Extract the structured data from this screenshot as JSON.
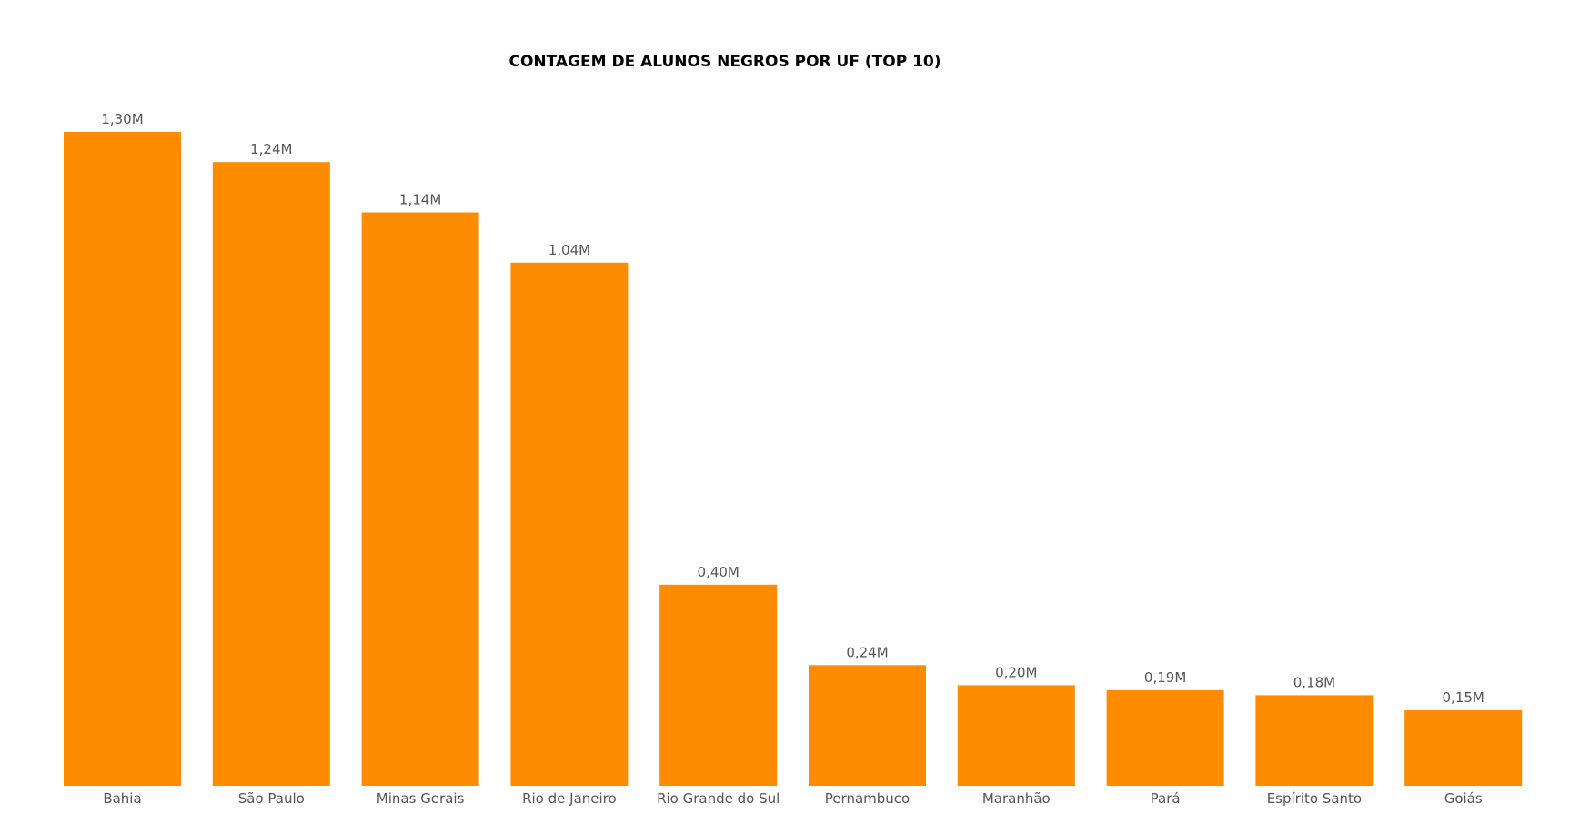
{
  "chart_data": {
    "type": "bar",
    "title": "CONTAGEM DE ALUNOS NEGROS POR UF (TOP 10)",
    "categories": [
      "Bahia",
      "São Paulo",
      "Minas Gerais",
      "Rio de Janeiro",
      "Rio Grande do Sul",
      "Pernambuco",
      "Maranhão",
      "Pará",
      "Espírito Santo",
      "Goiás"
    ],
    "values": [
      1.3,
      1.24,
      1.14,
      1.04,
      0.4,
      0.24,
      0.2,
      0.19,
      0.18,
      0.15
    ],
    "value_unit": "M",
    "data_labels": [
      "1,30M",
      "1,24M",
      "1,14M",
      "1,04M",
      "0,40M",
      "0,24M",
      "0,20M",
      "0,19M",
      "0,18M",
      "0,15M"
    ],
    "xlabel": "",
    "ylabel": "",
    "ylim": [
      0,
      1.3
    ],
    "grid": false,
    "legend": "none",
    "bar_color": "#FF8C00"
  }
}
